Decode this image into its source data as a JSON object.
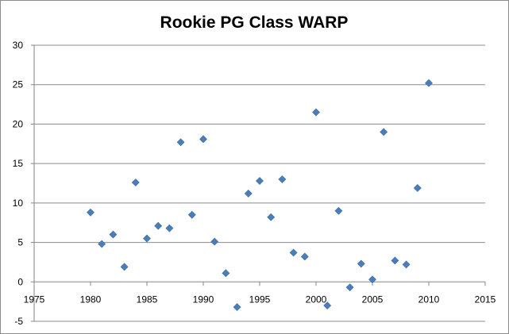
{
  "chart_data": {
    "type": "scatter",
    "title": "Rookie PG Class WARP",
    "xlabel": "",
    "ylabel": "",
    "xlim": [
      1975,
      2015
    ],
    "ylim": [
      -5,
      30
    ],
    "x_ticks": [
      "1975",
      "1980",
      "1985",
      "1990",
      "1995",
      "2000",
      "2005",
      "2010",
      "2015"
    ],
    "y_ticks": [
      "-5",
      "0",
      "5",
      "10",
      "15",
      "20",
      "25",
      "30"
    ],
    "grid": "horizontal",
    "legend": "none",
    "marker": "diamond",
    "colors": {
      "marker": "#4a7ebb",
      "grid": "#8c8c8c",
      "axis": "#868686"
    },
    "series": [
      {
        "x": [
          1980,
          1981,
          1982,
          1983,
          1984,
          1985,
          1986,
          1987,
          1988,
          1989,
          1990,
          1991,
          1992,
          1993,
          1994,
          1995,
          1996,
          1997,
          1998,
          1999,
          2000,
          2001,
          2002,
          2003,
          2004,
          2005,
          2006,
          2007,
          2008,
          2009,
          2010
        ],
        "y": [
          8.8,
          4.8,
          6.0,
          1.9,
          12.6,
          5.5,
          7.1,
          6.8,
          17.7,
          8.5,
          18.1,
          5.1,
          1.1,
          -3.2,
          11.2,
          12.8,
          8.2,
          13.0,
          3.7,
          3.2,
          21.5,
          -3.0,
          9.0,
          -0.7,
          2.3,
          0.3,
          19.0,
          2.7,
          2.2,
          11.9,
          25.2
        ]
      }
    ]
  }
}
